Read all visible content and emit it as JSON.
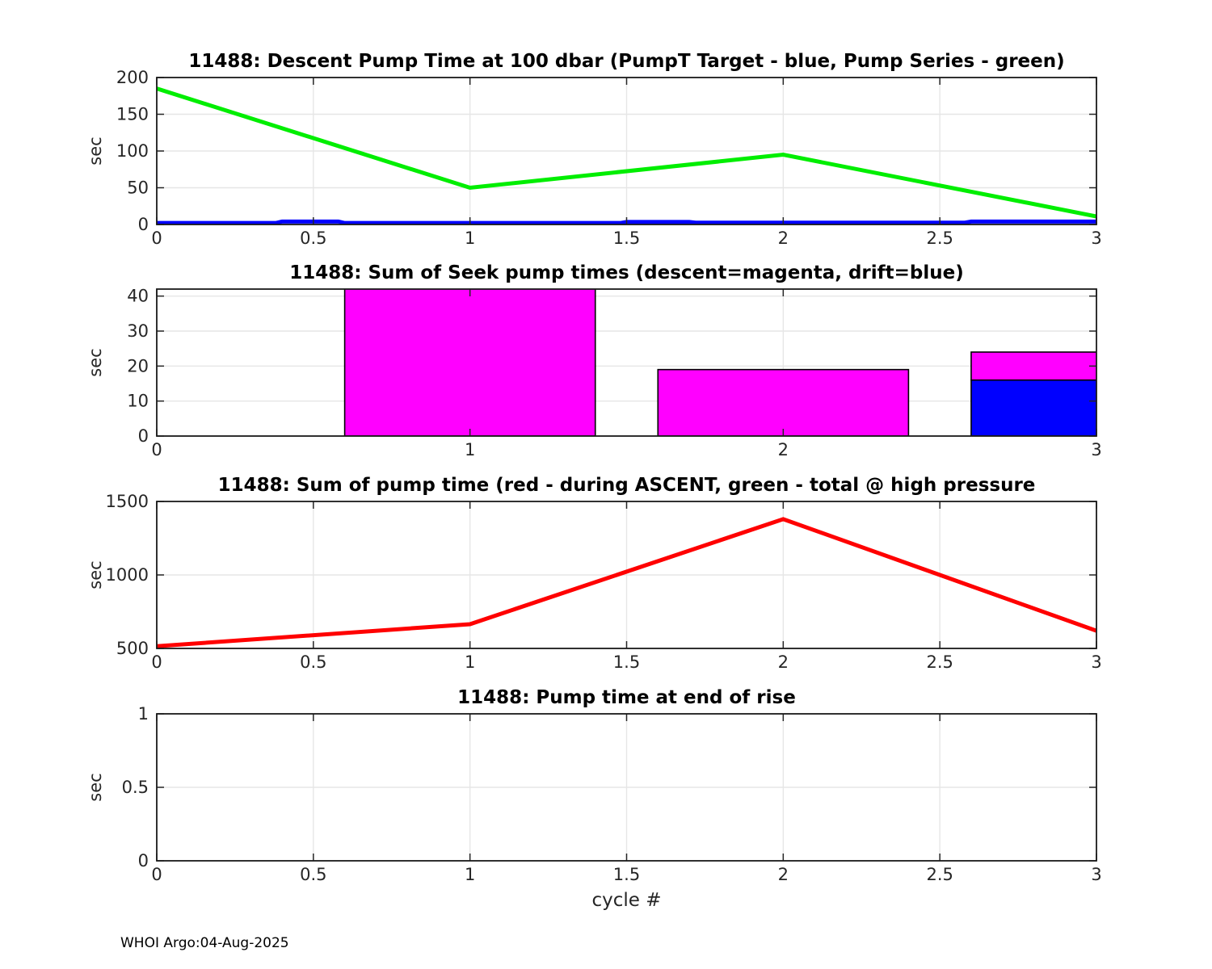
{
  "figure": {
    "xlabel": "cycle #",
    "watermark": "WHOI Argo:04-Aug-2025",
    "background": "#ffffff"
  },
  "colors": {
    "axis": "#262626",
    "grid": "#e6e6e6",
    "green": "#00ee00",
    "blue": "#0000ff",
    "magenta": "#ff00ff",
    "red": "#ff0000",
    "bar_edge": "#000000"
  },
  "chart_data": [
    {
      "type": "line",
      "title": "11488: Descent Pump Time at 100 dbar (PumpT Target - blue, Pump Series - green)",
      "ylabel": "sec",
      "xlim": [
        0,
        3
      ],
      "ylim": [
        0,
        200
      ],
      "xtick_vals": [
        0,
        0.5,
        1,
        1.5,
        2,
        2.5,
        3
      ],
      "xtick_labels": [
        "0",
        "0.5",
        "1",
        "1.5",
        "2",
        "2.5",
        "3"
      ],
      "ytick_vals": [
        0,
        50,
        100,
        150,
        200
      ],
      "ytick_labels": [
        "0",
        "50",
        "100",
        "150",
        "200"
      ],
      "grid": true,
      "series": [
        {
          "name": "PumpT Target",
          "color": "#0000ff",
          "x": [
            0,
            0.38,
            0.4,
            0.58,
            0.6,
            1.48,
            1.5,
            1.7,
            1.72,
            2.58,
            2.6,
            3
          ],
          "y": [
            2,
            2,
            4,
            4,
            2,
            2,
            3.5,
            3.5,
            2.5,
            2.5,
            4,
            4
          ]
        },
        {
          "name": "Pump Series",
          "color": "#00ee00",
          "x": [
            0,
            1,
            2,
            3
          ],
          "y": [
            185,
            50,
            95,
            11
          ]
        }
      ]
    },
    {
      "type": "bar",
      "title": "11488: Sum of Seek pump times (descent=magenta, drift=blue)",
      "ylabel": "sec",
      "xlim": [
        0,
        3
      ],
      "ylim": [
        0,
        42
      ],
      "xtick_vals": [
        0,
        1,
        2,
        3
      ],
      "xtick_labels": [
        "0",
        "1",
        "2",
        "3"
      ],
      "ytick_vals": [
        0,
        10,
        20,
        30,
        40
      ],
      "ytick_labels": [
        "0",
        "10",
        "20",
        "30",
        "40"
      ],
      "grid": true,
      "bar_width": 0.8,
      "bars": [
        {
          "x": 1,
          "segments": [
            {
              "name": "descent",
              "color": "#ff00ff",
              "from": 0,
              "to": 42,
              "clipped_at_top": true
            }
          ]
        },
        {
          "x": 2,
          "segments": [
            {
              "name": "descent",
              "color": "#ff00ff",
              "from": 0,
              "to": 19
            }
          ]
        },
        {
          "x": 3,
          "segments": [
            {
              "name": "drift",
              "color": "#0000ff",
              "from": 0,
              "to": 16
            },
            {
              "name": "descent",
              "color": "#ff00ff",
              "from": 16,
              "to": 24
            }
          ]
        }
      ]
    },
    {
      "type": "line",
      "title": "11488: Sum of pump time (red - during ASCENT, green - total @ high pressure",
      "ylabel": "sec",
      "xlim": [
        0,
        3
      ],
      "ylim": [
        500,
        1500
      ],
      "xtick_vals": [
        0,
        0.5,
        1,
        1.5,
        2,
        2.5,
        3
      ],
      "xtick_labels": [
        "0",
        "0.5",
        "1",
        "1.5",
        "2",
        "2.5",
        "3"
      ],
      "ytick_vals": [
        500,
        1000,
        1500
      ],
      "ytick_labels": [
        "500",
        "1000",
        "1500"
      ],
      "grid": true,
      "series": [
        {
          "name": "during ASCENT",
          "color": "#ff0000",
          "x": [
            0,
            1,
            2,
            3
          ],
          "y": [
            515,
            665,
            1380,
            620
          ]
        }
      ]
    },
    {
      "type": "line",
      "title": "11488: Pump time at end of rise",
      "ylabel": "sec",
      "xlim": [
        0,
        3
      ],
      "ylim": [
        0,
        1
      ],
      "xtick_vals": [
        0,
        0.5,
        1,
        1.5,
        2,
        2.5,
        3
      ],
      "xtick_labels": [
        "0",
        "0.5",
        "1",
        "1.5",
        "2",
        "2.5",
        "3"
      ],
      "ytick_vals": [
        0,
        0.5,
        1
      ],
      "ytick_labels": [
        "0",
        "0.5",
        "1"
      ],
      "grid": true,
      "series": []
    }
  ]
}
